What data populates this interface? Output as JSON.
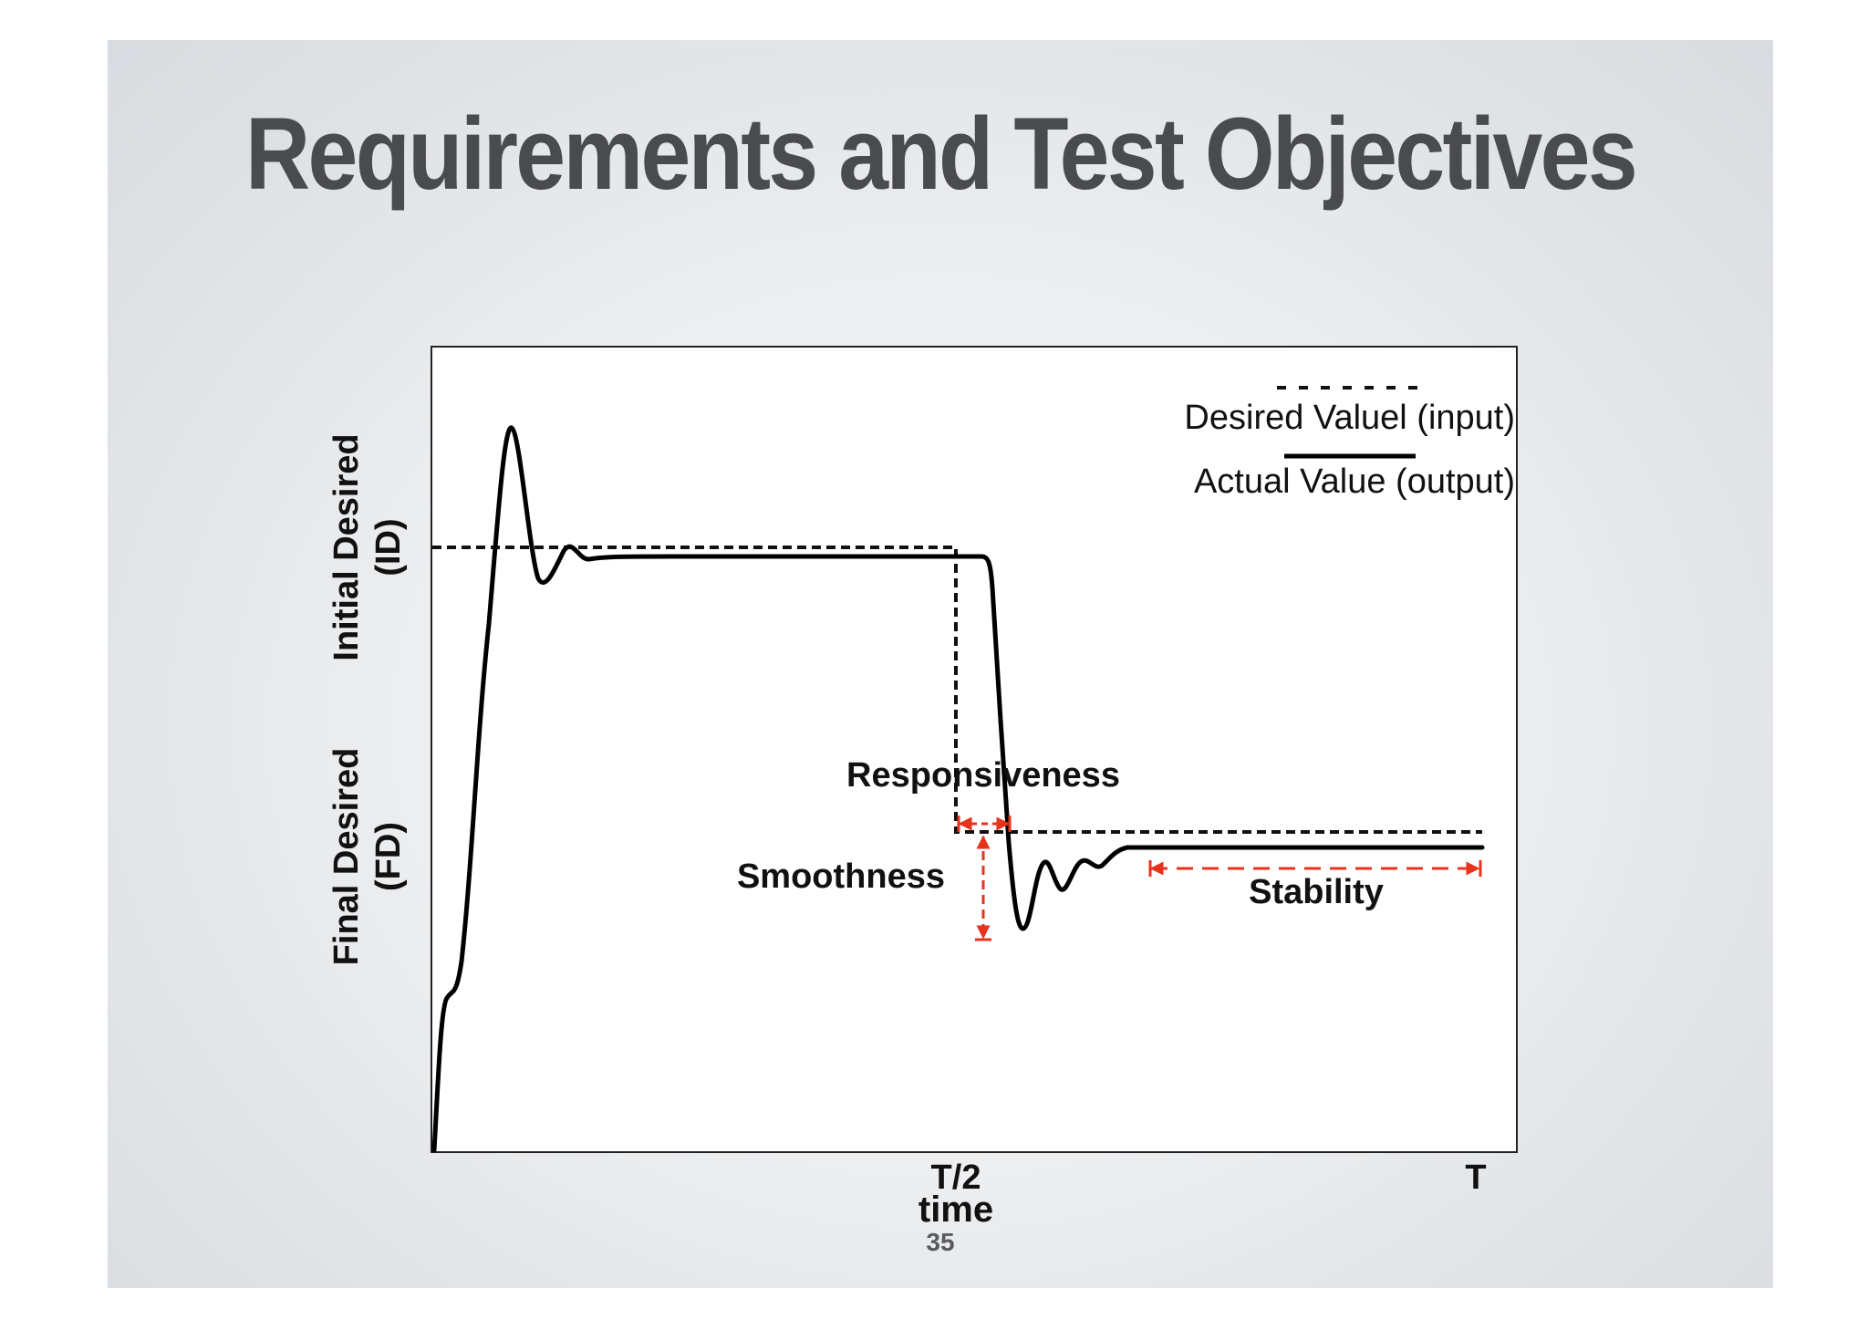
{
  "slide": {
    "title": "Requirements and Test Objectives",
    "page_number": "35"
  },
  "diagram": {
    "y_labels": {
      "initial_desired_line1": "Initial Desired",
      "initial_desired_line2": "(ID)",
      "final_desired_line1": "Final Desired",
      "final_desired_line2": "(FD)"
    },
    "x_labels": {
      "half_period": "T/2",
      "period": "T",
      "axis_title": "time"
    },
    "legend": {
      "desired": "Desired Valuel (input)",
      "actual": "Actual Value (output)"
    },
    "annotations": {
      "responsiveness": "Responsiveness",
      "smoothness": "Smoothness",
      "stability": "Stability"
    },
    "colors": {
      "annotation_arrows": "#e8331c",
      "signal": "#000000",
      "title": "#4a4b4d"
    }
  }
}
